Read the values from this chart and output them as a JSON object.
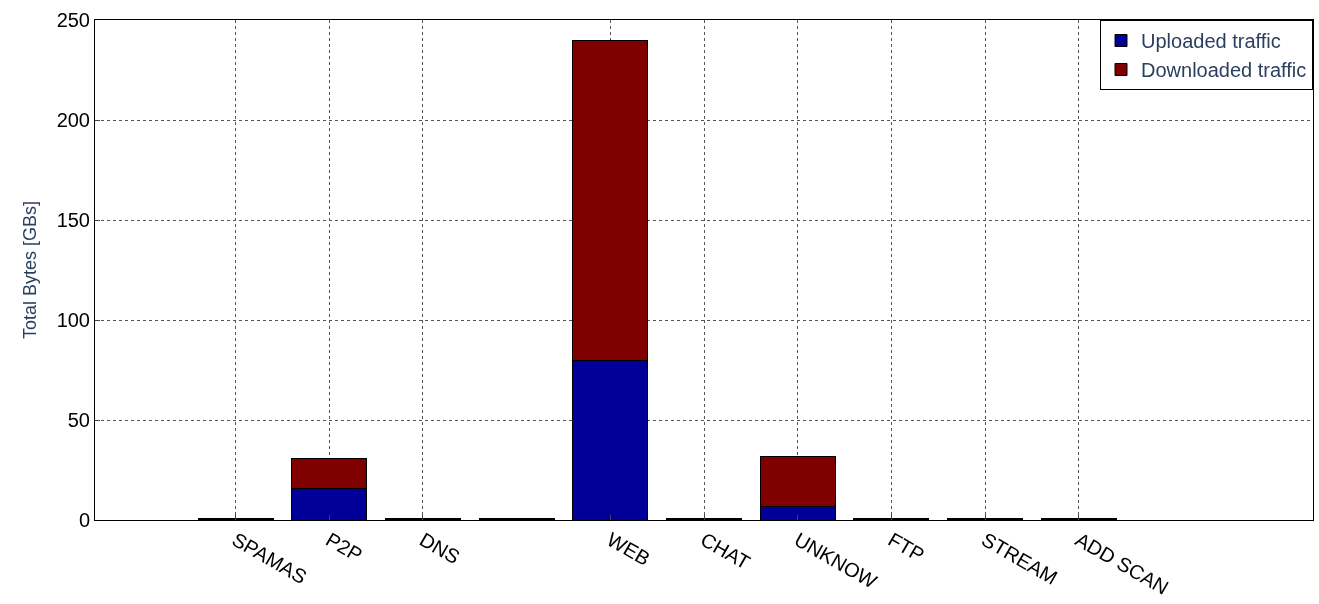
{
  "chart_data": {
    "type": "bar",
    "stacked": true,
    "ylabel": "Total Bytes [GBs]",
    "categories": [
      "SPAMAS",
      "P2P",
      "DNS",
      null,
      "WEB",
      "CHAT",
      "UNKNOW",
      "FTP",
      "STREAM",
      "ADD SCAN"
    ],
    "series": [
      {
        "name": "Uploaded traffic",
        "color": "#000099",
        "values": [
          0.5,
          16,
          0.5,
          0.5,
          80,
          0.5,
          7,
          0.5,
          0.5,
          0.5
        ]
      },
      {
        "name": "Downloaded traffic",
        "color": "#800000",
        "values": [
          0.5,
          15,
          0.5,
          0.5,
          160,
          0.5,
          25,
          0.5,
          0.5,
          0.5
        ]
      }
    ],
    "ylim": [
      0,
      250
    ],
    "yticks": [
      0,
      50,
      100,
      150,
      200,
      250
    ],
    "grid": true,
    "legend": "top right"
  }
}
